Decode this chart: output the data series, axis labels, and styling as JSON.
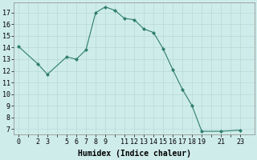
{
  "x": [
    0,
    2,
    3,
    5,
    6,
    7,
    8,
    9,
    10,
    11,
    12,
    13,
    14,
    15,
    16,
    17,
    18,
    19,
    21,
    23
  ],
  "y": [
    14.1,
    12.6,
    11.7,
    13.2,
    13.0,
    13.8,
    17.0,
    17.5,
    17.2,
    16.5,
    16.4,
    15.6,
    15.3,
    13.9,
    12.1,
    10.4,
    9.0,
    6.8,
    6.8,
    6.9
  ],
  "line_color": "#2e7d6e",
  "marker": "D",
  "marker_size": 2.0,
  "bg_color": "#ceecea",
  "grid_color_major": "#b8d8d6",
  "grid_color_minor": "#b8d8d6",
  "xlabel": "Humidex (Indice chaleur)",
  "xlabel_fontsize": 7,
  "tick_fontsize": 6,
  "ylabel_ticks": [
    7,
    8,
    9,
    10,
    11,
    12,
    13,
    14,
    15,
    16,
    17
  ],
  "xticks": [
    0,
    2,
    3,
    5,
    6,
    7,
    8,
    9,
    11,
    12,
    13,
    14,
    15,
    16,
    17,
    18,
    19,
    21,
    23
  ],
  "ylim": [
    6.5,
    17.9
  ],
  "xlim": [
    -0.5,
    24.5
  ]
}
